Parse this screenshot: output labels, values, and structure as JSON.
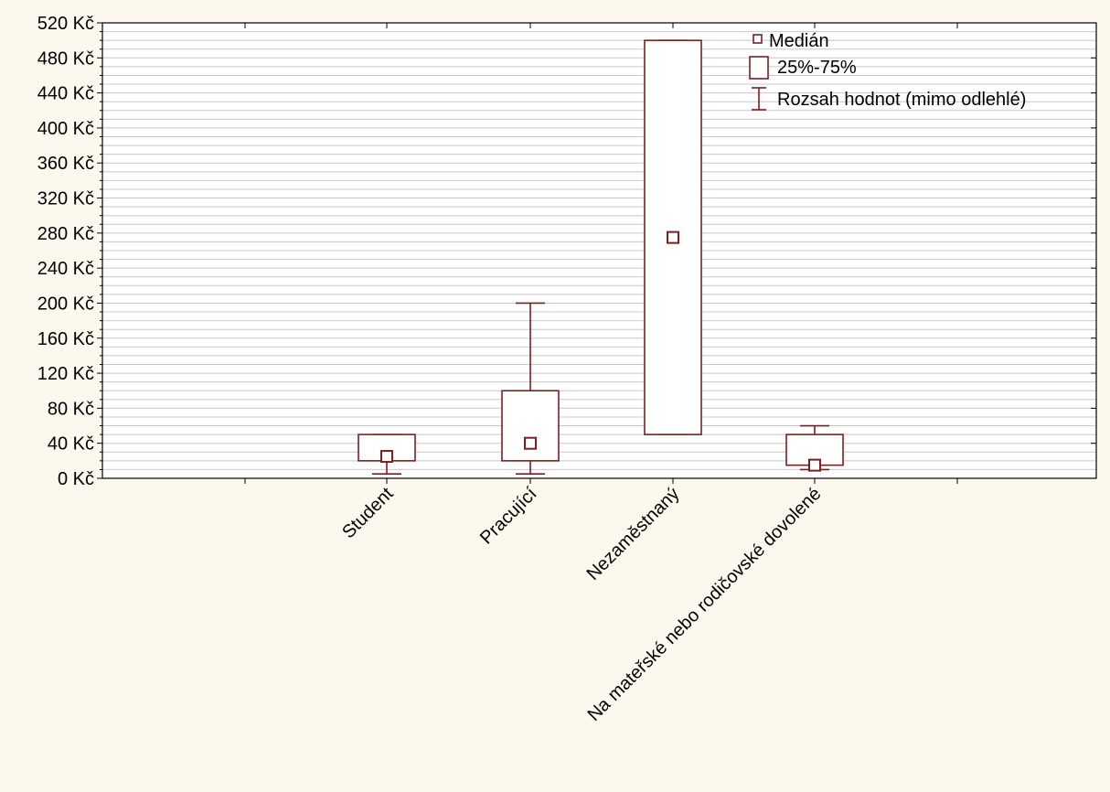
{
  "chart_data": {
    "type": "boxplot",
    "title": "",
    "xlabel": "",
    "ylabel": "",
    "ylim": [
      0,
      520
    ],
    "y_ticks": [
      {
        "value": 0,
        "label": "0 Kč"
      },
      {
        "value": 40,
        "label": "40 Kč"
      },
      {
        "value": 80,
        "label": "80 Kč"
      },
      {
        "value": 120,
        "label": "120 Kč"
      },
      {
        "value": 160,
        "label": "160 Kč"
      },
      {
        "value": 200,
        "label": "200 Kč"
      },
      {
        "value": 240,
        "label": "240 Kč"
      },
      {
        "value": 280,
        "label": "280 Kč"
      },
      {
        "value": 320,
        "label": "320 Kč"
      },
      {
        "value": 360,
        "label": "360 Kč"
      },
      {
        "value": 400,
        "label": "400 Kč"
      },
      {
        "value": 440,
        "label": "440 Kč"
      },
      {
        "value": 480,
        "label": "480 Kč"
      },
      {
        "value": 520,
        "label": "520 Kč"
      }
    ],
    "minor_grid_step": 10,
    "grid": true,
    "categories": [
      "Student",
      "Pracující",
      "Nezaměstnaný",
      "Na mateřské nebo rodičovské dovolené"
    ],
    "boxes": [
      {
        "category": "Student",
        "median": 25,
        "q1": 20,
        "q3": 50,
        "whisker_low": 5,
        "whisker_high": 50
      },
      {
        "category": "Pracující",
        "median": 40,
        "q1": 20,
        "q3": 100,
        "whisker_low": 5,
        "whisker_high": 200
      },
      {
        "category": "Nezaměstnaný",
        "median": 275,
        "q1": 50,
        "q3": 500,
        "whisker_low": 50,
        "whisker_high": 500
      },
      {
        "category": "Na mateřské nebo rodičovské dovolené",
        "median": 15,
        "q1": 15,
        "q3": 50,
        "whisker_low": 10,
        "whisker_high": 60
      }
    ],
    "legend": {
      "placement": "top-right",
      "items": [
        {
          "symbol": "median",
          "label": "Medián"
        },
        {
          "symbol": "box",
          "label": "25%-75%"
        },
        {
          "symbol": "whisker",
          "label": "Rozsah hodnot (mimo odlehlé)"
        }
      ]
    },
    "colors": {
      "stroke": "#7a1f1f",
      "box_fill": "#ffffff",
      "plot_background": "#ffffff",
      "page_background": "#fcf8ee",
      "grid": "#c8c8c8",
      "axis": "#000000"
    }
  }
}
